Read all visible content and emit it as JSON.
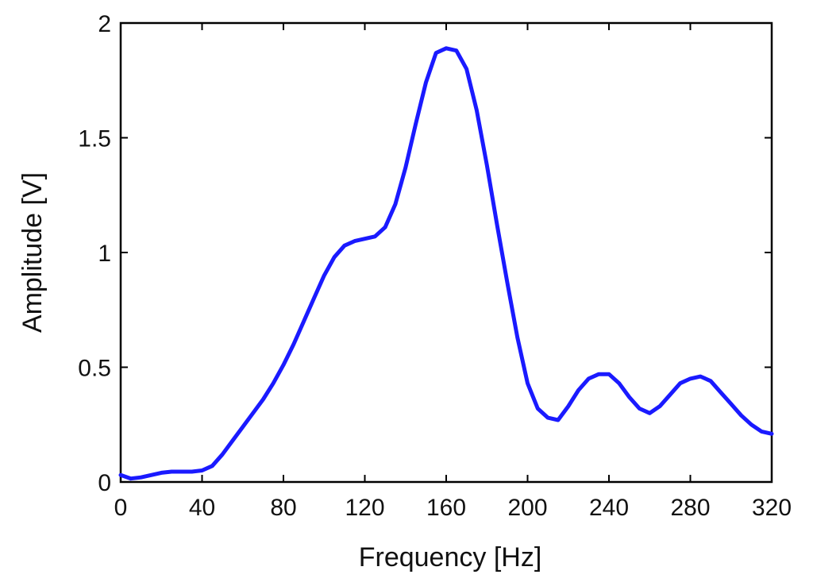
{
  "chart_data": {
    "type": "line",
    "title": "",
    "xlabel": "Frequency [Hz]",
    "ylabel": "Amplitude [V]",
    "xlim": [
      0,
      320
    ],
    "ylim": [
      0,
      2
    ],
    "x_ticks": [
      0,
      40,
      80,
      120,
      160,
      200,
      240,
      280,
      320
    ],
    "y_ticks": [
      0,
      0.5,
      1,
      1.5,
      2
    ],
    "x_tick_labels": [
      "0",
      "40",
      "80",
      "120",
      "160",
      "200",
      "240",
      "280",
      "320"
    ],
    "y_tick_labels": [
      "0",
      "0.5",
      "1",
      "1.5",
      "2"
    ],
    "grid": false,
    "legend": "none",
    "series": [
      {
        "color": "#1a1aff",
        "x": [
          0,
          5,
          10,
          15,
          20,
          25,
          30,
          35,
          40,
          45,
          50,
          55,
          60,
          65,
          70,
          75,
          80,
          85,
          90,
          95,
          100,
          105,
          110,
          115,
          120,
          125,
          130,
          135,
          140,
          145,
          150,
          155,
          160,
          165,
          170,
          175,
          180,
          185,
          190,
          195,
          200,
          205,
          210,
          215,
          220,
          225,
          230,
          235,
          240,
          245,
          250,
          255,
          260,
          265,
          270,
          275,
          280,
          285,
          290,
          295,
          300,
          305,
          310,
          315,
          320
        ],
        "y": [
          0.03,
          0.015,
          0.02,
          0.03,
          0.04,
          0.045,
          0.045,
          0.045,
          0.05,
          0.07,
          0.12,
          0.18,
          0.24,
          0.3,
          0.36,
          0.43,
          0.51,
          0.6,
          0.7,
          0.8,
          0.9,
          0.98,
          1.03,
          1.05,
          1.06,
          1.07,
          1.11,
          1.21,
          1.37,
          1.56,
          1.74,
          1.87,
          1.89,
          1.88,
          1.8,
          1.62,
          1.38,
          1.12,
          0.87,
          0.63,
          0.43,
          0.32,
          0.28,
          0.27,
          0.33,
          0.4,
          0.45,
          0.47,
          0.47,
          0.43,
          0.37,
          0.32,
          0.3,
          0.33,
          0.38,
          0.43,
          0.45,
          0.46,
          0.44,
          0.39,
          0.34,
          0.29,
          0.25,
          0.22,
          0.21
        ]
      }
    ]
  }
}
